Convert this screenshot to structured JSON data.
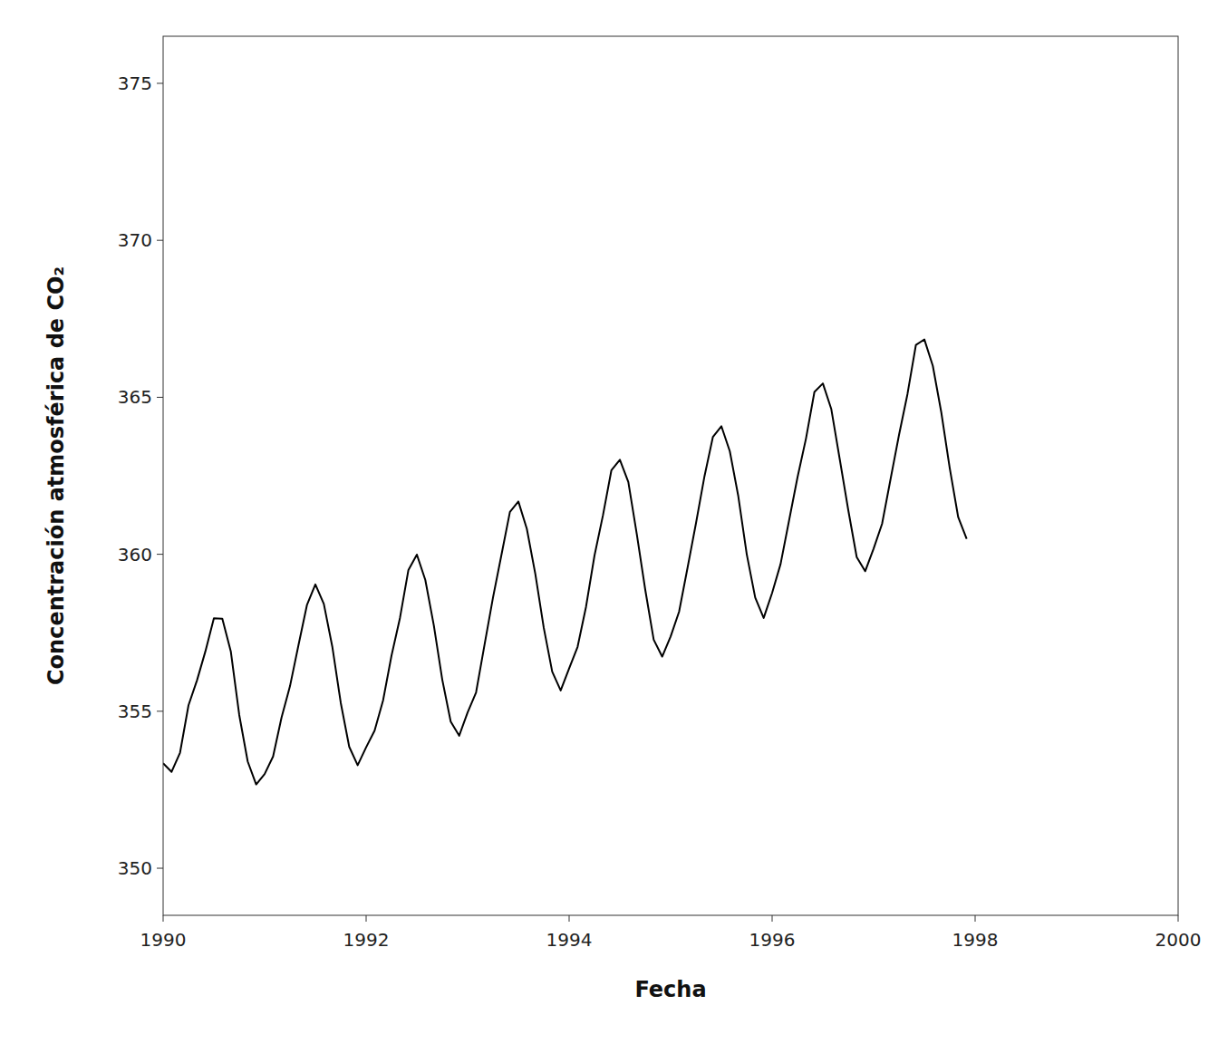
{
  "chart_data": {
    "type": "line",
    "xlabel": "Fecha",
    "ylabel": "Concentración atmosférica de CO₂",
    "x": [
      1990,
      1990.0833333333,
      1990.1666666667,
      1990.25,
      1990.3333333333,
      1990.4166666667,
      1990.5,
      1990.5833333333,
      1990.6666666667,
      1990.75,
      1990.8333333333,
      1990.9166666667,
      1991,
      1991.0833333333,
      1991.1666666667,
      1991.25,
      1991.3333333333,
      1991.4166666667,
      1991.5,
      1991.5833333333,
      1991.6666666667,
      1991.75,
      1991.8333333333,
      1991.9166666667,
      1992,
      1992.0833333333,
      1992.1666666667,
      1992.25,
      1992.3333333333,
      1992.4166666667,
      1992.5,
      1992.5833333333,
      1992.6666666667,
      1992.75,
      1992.8333333333,
      1992.9166666667,
      1993,
      1993.0833333333,
      1993.1666666667,
      1993.25,
      1993.3333333333,
      1993.4166666667,
      1993.5,
      1993.5833333333,
      1993.6666666667,
      1993.75,
      1993.8333333333,
      1993.9166666667,
      1994,
      1994.0833333333,
      1994.1666666667,
      1994.25,
      1994.3333333333,
      1994.4166666667,
      1994.5,
      1994.5833333333,
      1994.6666666667,
      1994.75,
      1994.8333333333,
      1994.9166666667,
      1995,
      1995.0833333333,
      1995.1666666667,
      1995.25,
      1995.3333333333,
      1995.4166666667,
      1995.5,
      1995.5833333333,
      1995.6666666667,
      1995.75,
      1995.8333333333,
      1995.9166666667,
      1996,
      1996.0833333333,
      1996.1666666667,
      1996.25,
      1996.3333333333,
      1996.4166666667,
      1996.5,
      1996.5833333333,
      1996.6666666667,
      1996.75,
      1996.8333333333,
      1996.9166666667,
      1997,
      1997.0833333333,
      1997.1666666667,
      1997.25,
      1997.3333333333,
      1997.4166666667,
      1997.5,
      1997.5833333333,
      1997.6666666667,
      1997.75,
      1997.8333333333,
      1997.9166666667
    ],
    "values": [
      353.34,
      353.07,
      353.68,
      355.19,
      355.98,
      356.91,
      357.96,
      357.95,
      356.91,
      354.88,
      353.4,
      352.67,
      353.0,
      353.56,
      354.8,
      355.8,
      357.1,
      358.38,
      359.04,
      358.42,
      357.06,
      355.27,
      353.87,
      353.28,
      353.85,
      354.38,
      355.34,
      356.77,
      357.97,
      359.5,
      359.99,
      359.18,
      357.74,
      356.01,
      354.67,
      354.22,
      354.96,
      355.6,
      357.12,
      358.62,
      359.98,
      361.35,
      361.68,
      360.81,
      359.38,
      357.66,
      356.26,
      355.66,
      356.36,
      357.05,
      358.33,
      359.96,
      361.24,
      362.68,
      363.01,
      362.3,
      360.64,
      358.87,
      357.28,
      356.74,
      357.38,
      358.17,
      359.57,
      360.99,
      362.48,
      363.74,
      364.08,
      363.28,
      361.85,
      360.0,
      358.62,
      357.97,
      358.77,
      359.69,
      361.07,
      362.45,
      363.68,
      365.17,
      365.44,
      364.62,
      363.02,
      361.41,
      359.91,
      359.46,
      360.18,
      360.97,
      362.39,
      363.8,
      365.1,
      366.67,
      366.84,
      366.0,
      364.52,
      362.74,
      361.18,
      360.49
    ],
    "color": "#000000",
    "xlim": [
      1990,
      2000
    ],
    "ylim": [
      348.5,
      376.5
    ],
    "xticks": [
      1990,
      1992,
      1994,
      1996,
      1998,
      2000
    ],
    "yticks": [
      350,
      355,
      360,
      365,
      370,
      375
    ],
    "grid": false
  }
}
